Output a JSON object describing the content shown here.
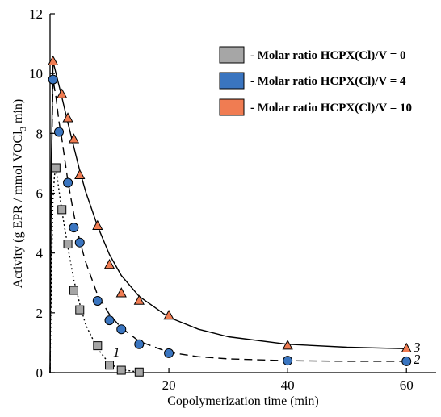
{
  "chart_data": {
    "type": "scatter",
    "xlabel": "Copolymerization time (min)",
    "ylabel_main": "Activity (g EPR / mmol VOCl",
    "ylabel_sub": "3",
    "ylabel_end": " min)",
    "xlim": [
      0,
      65
    ],
    "ylim": [
      0,
      12
    ],
    "xticks": [
      20,
      40,
      60
    ],
    "yticks": [
      0,
      2,
      4,
      6,
      8,
      10,
      12
    ],
    "grid": false,
    "legend_position": "top-right",
    "series": [
      {
        "name": "- Molar ratio HCPX(Cl)/V = 0",
        "marker": "square",
        "color": "#a6a6a6",
        "line_style": "dotted",
        "curve_label": "1",
        "x": [
          1,
          2,
          3,
          4,
          5,
          8,
          10,
          12,
          15
        ],
        "y": [
          6.85,
          5.45,
          4.3,
          2.75,
          2.1,
          0.9,
          0.25,
          0.08,
          0.02
        ]
      },
      {
        "name": "- Molar ratio HCPX(Cl)/V = 4",
        "marker": "circle",
        "color": "#3a75c0",
        "line_style": "dashed",
        "curve_label": "2",
        "x": [
          0.5,
          1.5,
          3,
          4,
          5,
          8,
          10,
          12,
          15,
          20,
          40,
          60
        ],
        "y": [
          9.8,
          8.05,
          6.35,
          4.85,
          4.35,
          2.4,
          1.75,
          1.45,
          0.95,
          0.65,
          0.4,
          0.38
        ]
      },
      {
        "name": "- Molar ratio HCPX(Cl)/V = 10",
        "marker": "triangle",
        "color": "#f07c52",
        "line_style": "solid",
        "curve_label": "3",
        "x": [
          0.5,
          2,
          3,
          4,
          5,
          8,
          10,
          12,
          15,
          20,
          40,
          60
        ],
        "y": [
          10.4,
          9.3,
          8.5,
          7.8,
          6.6,
          4.9,
          3.6,
          2.65,
          2.4,
          1.9,
          0.9,
          0.8
        ]
      }
    ],
    "fit_curves": [
      {
        "series": 0,
        "x": [
          0,
          0.25,
          0.5,
          0.75,
          1,
          1.5,
          2,
          3,
          4,
          5,
          6,
          8,
          10,
          12,
          15
        ],
        "y": [
          0,
          3.5,
          5.8,
          6.6,
          6.85,
          6.1,
          5.4,
          4.2,
          3.1,
          2.3,
          1.6,
          0.8,
          0.3,
          0.1,
          0.02
        ]
      },
      {
        "series": 1,
        "x": [
          0,
          0.2,
          0.5,
          1,
          1.5,
          2,
          3,
          4,
          5,
          6,
          8,
          10,
          12,
          15,
          20,
          25,
          30,
          40,
          50,
          60
        ],
        "y": [
          0,
          6.5,
          9.8,
          9.2,
          8.4,
          7.8,
          6.4,
          5.3,
          4.4,
          3.7,
          2.6,
          1.95,
          1.5,
          1.05,
          0.68,
          0.53,
          0.46,
          0.4,
          0.38,
          0.38
        ]
      },
      {
        "series": 2,
        "x": [
          0,
          0.2,
          0.5,
          1,
          2,
          3,
          4,
          5,
          6,
          8,
          10,
          12,
          15,
          20,
          25,
          30,
          40,
          50,
          60
        ],
        "y": [
          0,
          7.0,
          10.4,
          10.0,
          9.2,
          8.35,
          7.55,
          6.75,
          6.05,
          4.9,
          3.95,
          3.25,
          2.55,
          1.85,
          1.45,
          1.2,
          0.95,
          0.85,
          0.8
        ]
      }
    ]
  }
}
